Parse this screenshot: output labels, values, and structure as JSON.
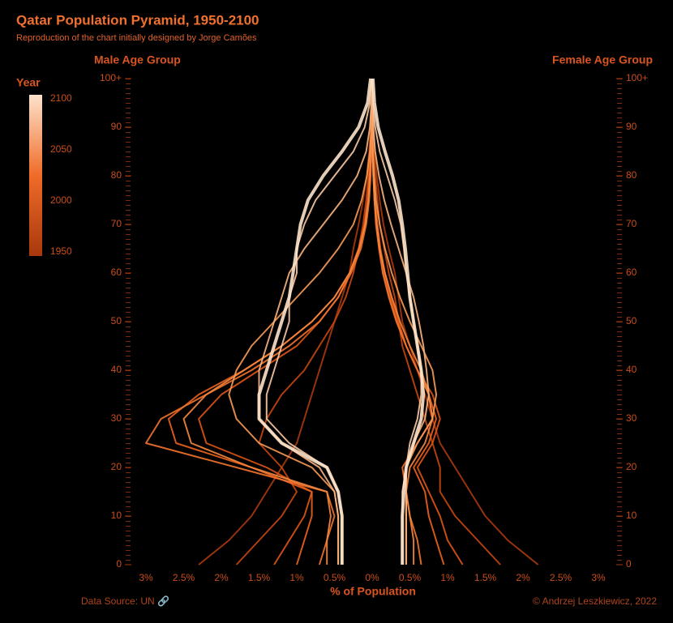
{
  "chart_data": {
    "type": "line",
    "title": "Qatar Population Pyramid, 1950-2100",
    "subtitle": "Reproduction of the chart initially designed by Jorge Camões",
    "y_label_left": "Male Age Group",
    "y_label_right": "Female Age Group",
    "x_label": "% of Population",
    "legend_title": "Year",
    "legend_colors": [
      "#a8380d",
      "#f06b28",
      "#fde3cb"
    ],
    "legend_lim": [
      1946,
      2104
    ],
    "legend_ticks": [
      1950,
      2000,
      2050,
      2100
    ],
    "source": "Data Source: UN 🔗",
    "credit": "© Andrzej Leszkiewicz, 2022",
    "y": [
      0,
      5,
      10,
      15,
      20,
      25,
      30,
      35,
      40,
      45,
      50,
      55,
      60,
      65,
      70,
      75,
      80,
      85,
      90,
      95,
      100
    ],
    "ylim": [
      0,
      100
    ],
    "yticks": [
      0,
      10,
      20,
      30,
      40,
      50,
      60,
      70,
      80,
      90,
      {
        "value": 100,
        "label": "100+"
      }
    ],
    "xlim": [
      -3.2,
      3.2
    ],
    "xticks": [
      {
        "value": -3,
        "label": "3%"
      },
      {
        "value": -2.5,
        "label": "2.5%"
      },
      {
        "value": -2,
        "label": "2%"
      },
      {
        "value": -1.5,
        "label": "1.5%"
      },
      {
        "value": -1,
        "label": "1%"
      },
      {
        "value": -0.5,
        "label": "0.5%"
      },
      {
        "value": 0,
        "label": "0%"
      },
      {
        "value": 0.5,
        "label": "0.5%"
      },
      {
        "value": 1,
        "label": "1%"
      },
      {
        "value": 1.5,
        "label": "1.5%"
      },
      {
        "value": 2,
        "label": "2%"
      },
      {
        "value": 2.5,
        "label": "2.5%"
      },
      {
        "value": 3,
        "label": "3%"
      }
    ],
    "series": [
      {
        "color": "#a8380d",
        "male": [
          -2.3,
          -1.9,
          -1.6,
          -1.4,
          -1.2,
          -1.0,
          -0.9,
          -0.8,
          -0.7,
          -0.6,
          -0.5,
          -0.4,
          -0.3,
          -0.25,
          -0.18,
          -0.12,
          -0.07,
          -0.04,
          -0.02,
          -0.01,
          0
        ],
        "female": [
          2.2,
          1.8,
          1.5,
          1.3,
          1.1,
          0.9,
          0.8,
          0.7,
          0.6,
          0.5,
          0.4,
          0.35,
          0.3,
          0.22,
          0.15,
          0.1,
          0.06,
          0.03,
          0.015,
          0.005,
          0
        ]
      },
      {
        "color": "#c5460f",
        "male": [
          -1.8,
          -1.5,
          -1.2,
          -1.0,
          -1.2,
          -1.5,
          -1.4,
          -1.2,
          -0.9,
          -0.7,
          -0.5,
          -0.35,
          -0.25,
          -0.18,
          -0.12,
          -0.08,
          -0.05,
          -0.03,
          -0.01,
          -0.005,
          0
        ],
        "female": [
          1.7,
          1.4,
          1.1,
          0.9,
          0.9,
          0.8,
          0.7,
          0.6,
          0.5,
          0.4,
          0.35,
          0.3,
          0.22,
          0.16,
          0.1,
          0.07,
          0.04,
          0.02,
          0.01,
          0.005,
          0
        ]
      },
      {
        "color": "#de5516",
        "male": [
          -1.3,
          -1.1,
          -0.9,
          -0.8,
          -1.4,
          -2.2,
          -2.3,
          -2.0,
          -1.5,
          -1.0,
          -0.7,
          -0.45,
          -0.3,
          -0.18,
          -0.1,
          -0.06,
          -0.04,
          -0.02,
          -0.01,
          -0.005,
          0
        ],
        "female": [
          1.2,
          1.0,
          0.9,
          0.75,
          0.6,
          0.8,
          0.9,
          0.8,
          0.6,
          0.45,
          0.35,
          0.25,
          0.17,
          0.11,
          0.07,
          0.04,
          0.02,
          0.01,
          0.005,
          0,
          0
        ]
      },
      {
        "color": "#ec6320",
        "male": [
          -1.0,
          -0.9,
          -0.8,
          -0.8,
          -1.6,
          -2.6,
          -2.7,
          -2.3,
          -1.7,
          -1.2,
          -0.8,
          -0.5,
          -0.3,
          -0.18,
          -0.1,
          -0.05,
          -0.03,
          -0.015,
          -0.01,
          0,
          0
        ],
        "female": [
          0.95,
          0.85,
          0.75,
          0.7,
          0.55,
          0.75,
          0.85,
          0.75,
          0.6,
          0.45,
          0.33,
          0.23,
          0.15,
          0.1,
          0.06,
          0.03,
          0.02,
          0.01,
          0,
          0,
          0
        ]
      },
      {
        "color": "#f2732e",
        "male": [
          -0.7,
          -0.6,
          -0.5,
          -0.6,
          -1.8,
          -3.0,
          -2.8,
          -2.2,
          -1.6,
          -1.1,
          -0.7,
          -0.45,
          -0.28,
          -0.15,
          -0.08,
          -0.04,
          -0.02,
          -0.01,
          -0.005,
          0,
          0
        ],
        "female": [
          0.65,
          0.6,
          0.5,
          0.45,
          0.4,
          0.6,
          0.8,
          0.75,
          0.6,
          0.45,
          0.32,
          0.22,
          0.14,
          0.09,
          0.05,
          0.03,
          0.015,
          0.005,
          0,
          0,
          0
        ]
      },
      {
        "color": "#f5873f",
        "male": [
          -0.6,
          -0.6,
          -0.55,
          -0.6,
          -1.6,
          -2.4,
          -2.5,
          -2.2,
          -1.7,
          -1.2,
          -0.8,
          -0.5,
          -0.3,
          -0.17,
          -0.09,
          -0.05,
          -0.03,
          -0.015,
          -0.005,
          0,
          0
        ],
        "female": [
          0.55,
          0.55,
          0.5,
          0.45,
          0.5,
          0.7,
          0.8,
          0.75,
          0.65,
          0.5,
          0.37,
          0.26,
          0.17,
          0.1,
          0.06,
          0.03,
          0.015,
          0.005,
          0,
          0,
          0
        ]
      },
      {
        "color": "#f69a57",
        "male": [
          -0.45,
          -0.45,
          -0.45,
          -0.5,
          -0.8,
          -1.5,
          -1.8,
          -1.9,
          -1.8,
          -1.6,
          -1.3,
          -1.0,
          -0.7,
          -0.45,
          -0.25,
          -0.14,
          -0.07,
          -0.03,
          -0.01,
          0,
          0
        ],
        "female": [
          0.45,
          0.45,
          0.45,
          0.45,
          0.45,
          0.6,
          0.8,
          0.85,
          0.8,
          0.65,
          0.5,
          0.37,
          0.26,
          0.17,
          0.1,
          0.05,
          0.025,
          0.01,
          0,
          0,
          0
        ]
      },
      {
        "color": "#f8b47f",
        "male": [
          -0.45,
          -0.45,
          -0.45,
          -0.5,
          -0.7,
          -1.2,
          -1.5,
          -1.5,
          -1.5,
          -1.4,
          -1.3,
          -1.2,
          -1.1,
          -0.9,
          -0.65,
          -0.4,
          -0.2,
          -0.08,
          -0.03,
          -0.01,
          0
        ],
        "female": [
          0.45,
          0.45,
          0.45,
          0.45,
          0.45,
          0.55,
          0.7,
          0.75,
          0.72,
          0.68,
          0.62,
          0.55,
          0.45,
          0.35,
          0.25,
          0.16,
          0.09,
          0.04,
          0.015,
          0.005,
          0
        ]
      },
      {
        "color": "#fac9a3",
        "male": [
          -0.4,
          -0.4,
          -0.4,
          -0.45,
          -0.6,
          -1.1,
          -1.4,
          -1.4,
          -1.3,
          -1.2,
          -1.1,
          -1.1,
          -1.0,
          -1.0,
          -0.9,
          -0.75,
          -0.5,
          -0.25,
          -0.1,
          -0.03,
          -0.01
        ],
        "female": [
          0.4,
          0.4,
          0.4,
          0.4,
          0.45,
          0.5,
          0.6,
          0.65,
          0.65,
          0.6,
          0.55,
          0.5,
          0.45,
          0.42,
          0.38,
          0.3,
          0.2,
          0.1,
          0.04,
          0.01,
          0
        ]
      },
      {
        "color": "#fde3cb",
        "male": [
          -0.4,
          -0.4,
          -0.4,
          -0.45,
          -0.6,
          -1.2,
          -1.5,
          -1.5,
          -1.4,
          -1.3,
          -1.2,
          -1.1,
          -1.05,
          -1.0,
          -0.95,
          -0.85,
          -0.65,
          -0.4,
          -0.18,
          -0.06,
          -0.02
        ],
        "female": [
          0.4,
          0.4,
          0.4,
          0.42,
          0.45,
          0.55,
          0.65,
          0.68,
          0.65,
          0.6,
          0.55,
          0.5,
          0.47,
          0.44,
          0.4,
          0.35,
          0.27,
          0.17,
          0.08,
          0.03,
          0.01
        ]
      }
    ]
  }
}
